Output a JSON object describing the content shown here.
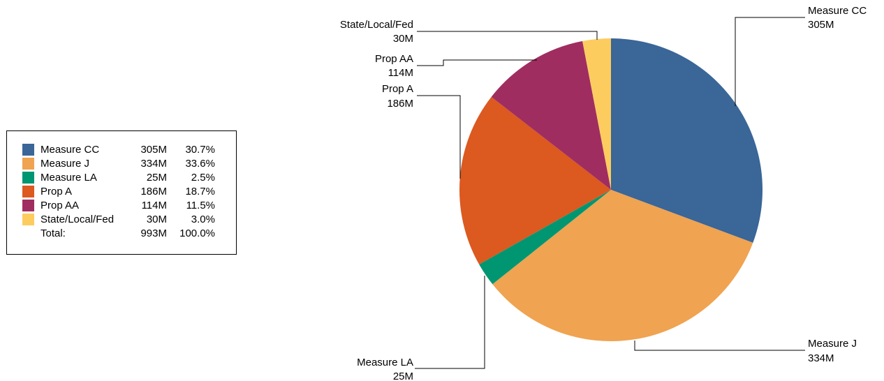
{
  "chart_data": {
    "type": "pie",
    "title": "",
    "slices": [
      {
        "label": "Measure CC",
        "value": 305,
        "display": "305M",
        "percent": "30.7%",
        "color": "#3A6698"
      },
      {
        "label": "Measure J",
        "value": 334,
        "display": "334M",
        "percent": "33.6%",
        "color": "#F0A350"
      },
      {
        "label": "Measure LA",
        "value": 25,
        "display": "25M",
        "percent": "2.5%",
        "color": "#009672"
      },
      {
        "label": "Prop A",
        "value": 186,
        "display": "186M",
        "percent": "18.7%",
        "color": "#DC591F"
      },
      {
        "label": "Prop AA",
        "value": 114,
        "display": "114M",
        "percent": "11.5%",
        "color": "#A02D60"
      },
      {
        "label": "State/Local/Fed",
        "value": 30,
        "display": "30M",
        "percent": "3.0%",
        "color": "#FDCC5F"
      }
    ],
    "total": {
      "label": "Total:",
      "display": "993M",
      "percent": "100.0%"
    },
    "legend_position": "left",
    "start_angle": "12 o'clock",
    "direction": "clockwise"
  }
}
